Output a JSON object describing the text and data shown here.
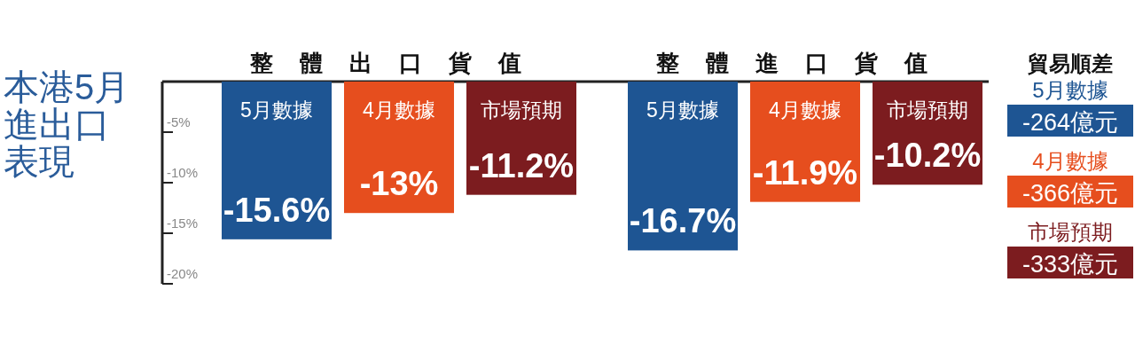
{
  "chart_data": [
    {
      "type": "bar",
      "title": "本港5月進出口表現",
      "categories": [
        "整體出口貨值",
        "整體進口貨值"
      ],
      "ylim": [
        -20,
        0
      ],
      "yticks": [
        {
          "value": -5,
          "label": "-5%"
        },
        {
          "value": -10,
          "label": "-10%"
        },
        {
          "value": -15,
          "label": "-15%"
        },
        {
          "value": -20,
          "label": "-20%"
        }
      ],
      "series": [
        {
          "name": "5月數據",
          "color": "#1e5593",
          "values": [
            -15.6,
            -16.7
          ],
          "value_labels": [
            "-15.6%",
            "-16.7%"
          ]
        },
        {
          "name": "4月數據",
          "color": "#e64e1e",
          "values": [
            -13,
            -11.9
          ],
          "value_labels": [
            "-13%",
            "-11.9%"
          ]
        },
        {
          "name": "市場預期",
          "color": "#7c1c1f",
          "values": [
            -11.2,
            -10.2
          ],
          "value_labels": [
            "-11.2%",
            "-10.2%"
          ]
        }
      ]
    },
    {
      "type": "other",
      "title": "貿易順差",
      "categories": [
        "5月數據",
        "4月數據",
        "市場預期"
      ],
      "annotations": [
        "-264億元",
        "-366億元",
        "-333億元"
      ],
      "colors": [
        "#1e5593",
        "#e64e1e",
        "#7c1c1f"
      ]
    }
  ]
}
